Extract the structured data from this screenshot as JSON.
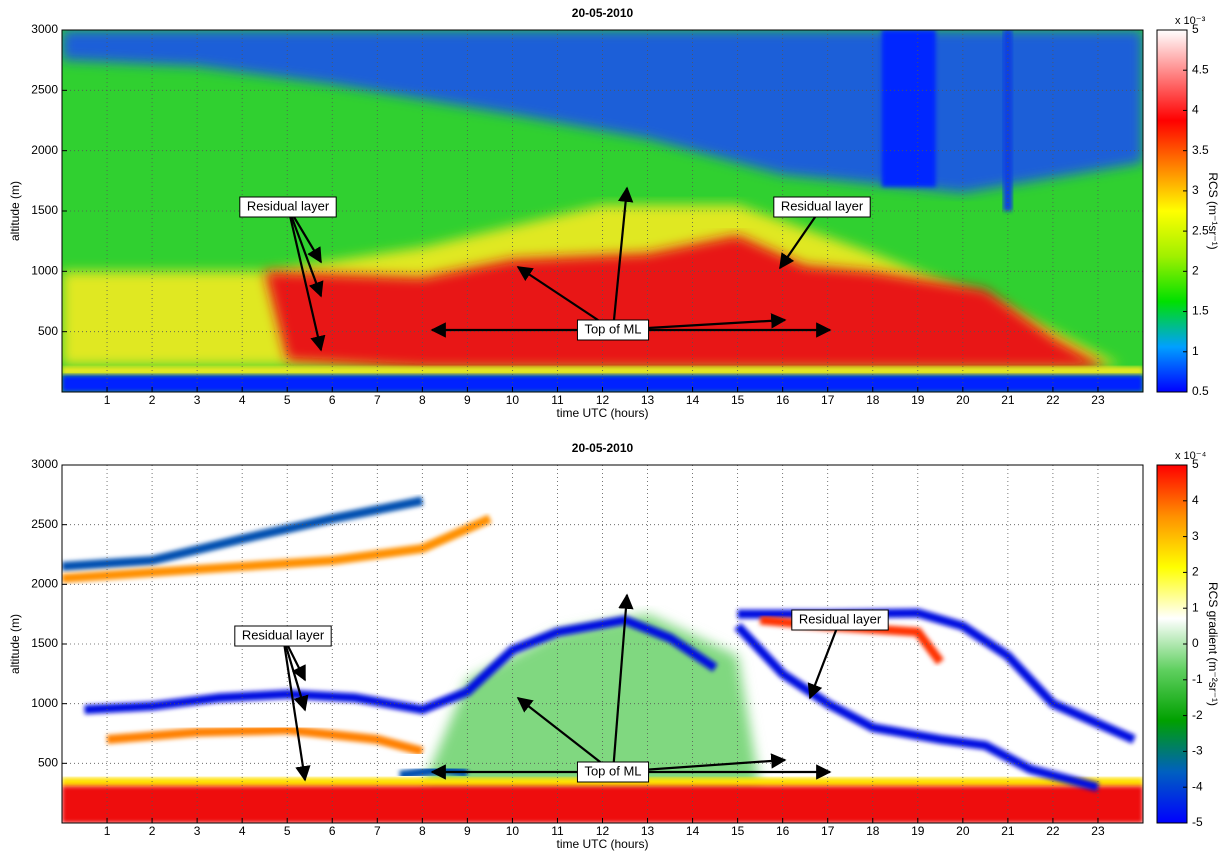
{
  "chart_data": [
    {
      "type": "heatmap",
      "title": "20-05-2010",
      "x_label": "time UTC (hours)",
      "y_label": "altitude (m)",
      "xlim": [
        0,
        24
      ],
      "xticks": [
        1,
        2,
        3,
        4,
        5,
        6,
        7,
        8,
        9,
        10,
        11,
        12,
        13,
        14,
        15,
        16,
        17,
        18,
        19,
        20,
        21,
        22,
        23
      ],
      "ylim": [
        0,
        3000
      ],
      "yticks": [
        500,
        1000,
        1500,
        2000,
        2500,
        3000
      ],
      "grid": true,
      "colorbar_label": "RCS (m⁻¹sr⁻¹)",
      "colorbar_scale": "x 10⁻³",
      "colorbar_lim": [
        0.5,
        5
      ],
      "colorbar_ticks": [
        0.5,
        1,
        1.5,
        2,
        2.5,
        3,
        3.5,
        4,
        4.5,
        5
      ],
      "colormap": [
        "#0000ff",
        "#00a0ff",
        "#00e000",
        "#a0f000",
        "#ffff00",
        "#ff8000",
        "#ff0000",
        "#ff8080",
        "#ffffff"
      ],
      "annotations": [
        "Residual layer",
        "Residual layer",
        "Top of ML"
      ]
    },
    {
      "type": "heatmap",
      "title": "20-05-2010",
      "x_label": "time UTC (hours)",
      "y_label": "altitude (m)",
      "xlim": [
        0,
        24
      ],
      "xticks": [
        1,
        2,
        3,
        4,
        5,
        6,
        7,
        8,
        9,
        10,
        11,
        12,
        13,
        14,
        15,
        16,
        17,
        18,
        19,
        20,
        21,
        22,
        23
      ],
      "ylim": [
        0,
        3000
      ],
      "yticks": [
        500,
        1000,
        1500,
        2000,
        2500,
        3000
      ],
      "grid": true,
      "colorbar_label": "RCS gradient (m⁻²sr⁻¹)",
      "colorbar_scale": "x 10⁻⁴",
      "colorbar_lim": [
        -5,
        5
      ],
      "colorbar_ticks": [
        -5,
        -4,
        -3,
        -2,
        -1,
        0,
        1,
        2,
        3,
        4,
        5
      ],
      "colormap": [
        "#0000ff",
        "#0060c0",
        "#00a000",
        "#60d060",
        "#ffffff",
        "#ffff00",
        "#ff9000",
        "#ff0000"
      ],
      "annotations": [
        "Residual layer",
        "Residual layer",
        "Top of ML"
      ]
    }
  ]
}
